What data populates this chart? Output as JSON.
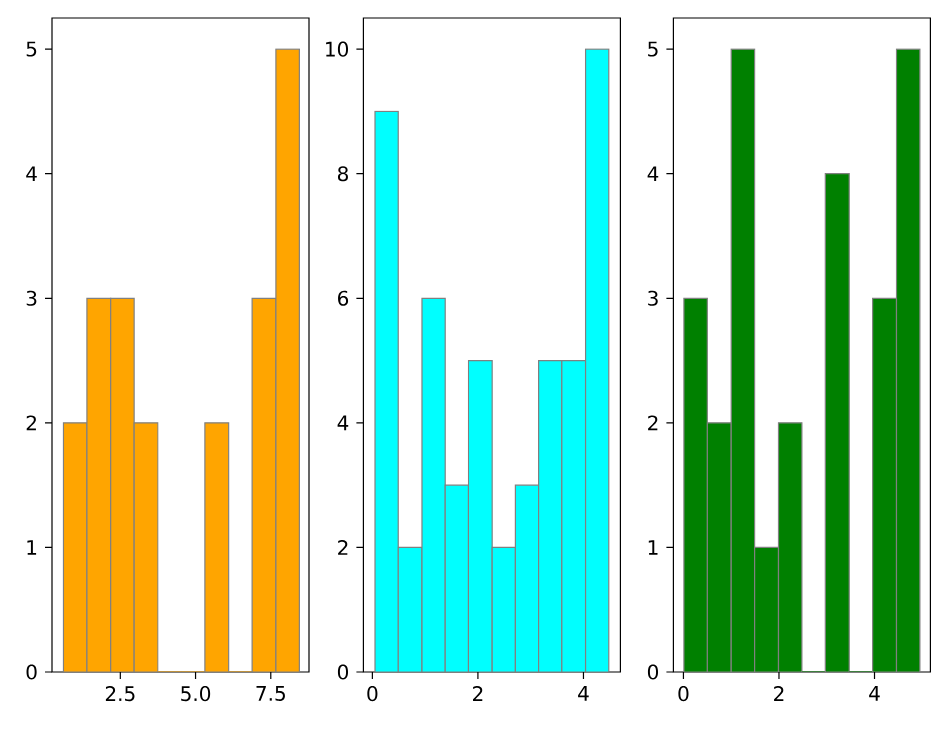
{
  "chart_data": [
    {
      "type": "histogram",
      "bins": [
        0.61,
        1.39,
        2.18,
        2.96,
        3.75,
        4.53,
        5.31,
        6.1,
        6.88,
        7.67,
        8.45
      ],
      "values": [
        2,
        3,
        3,
        2,
        0,
        0,
        2,
        0,
        3,
        5
      ],
      "color": "#ffa500",
      "xlim": [
        0.23,
        8.77
      ],
      "ylim": [
        0,
        5.25
      ],
      "xticks": [
        2.5,
        {
          "value": 5,
          "label": "5.0"
        },
        7.5
      ],
      "yticks": [
        0,
        1,
        2,
        3,
        4,
        5
      ],
      "grid": false
    },
    {
      "type": "histogram",
      "bins": [
        0.05,
        0.49,
        0.94,
        1.38,
        1.82,
        2.27,
        2.71,
        3.15,
        3.59,
        4.04,
        4.48
      ],
      "values": [
        9,
        2,
        6,
        3,
        5,
        2,
        3,
        5,
        5,
        10
      ],
      "color": "#00ffff",
      "xlim": [
        -0.17,
        4.7
      ],
      "ylim": [
        0,
        10.5
      ],
      "xticks": [
        0,
        2,
        4
      ],
      "yticks": [
        0,
        2,
        4,
        6,
        8,
        10
      ],
      "grid": false
    },
    {
      "type": "histogram",
      "bins": [
        0.01,
        0.5,
        1.0,
        1.49,
        1.99,
        2.48,
        2.97,
        3.47,
        3.96,
        4.46,
        4.95
      ],
      "values": [
        3,
        2,
        5,
        1,
        2,
        0,
        4,
        0,
        3,
        5
      ],
      "color": "#008000",
      "xlim": [
        -0.21,
        5.17
      ],
      "ylim": [
        0,
        5.25
      ],
      "xticks": [
        0,
        2,
        4
      ],
      "yticks": [
        0,
        1,
        2,
        3,
        4,
        5
      ],
      "grid": false
    }
  ]
}
